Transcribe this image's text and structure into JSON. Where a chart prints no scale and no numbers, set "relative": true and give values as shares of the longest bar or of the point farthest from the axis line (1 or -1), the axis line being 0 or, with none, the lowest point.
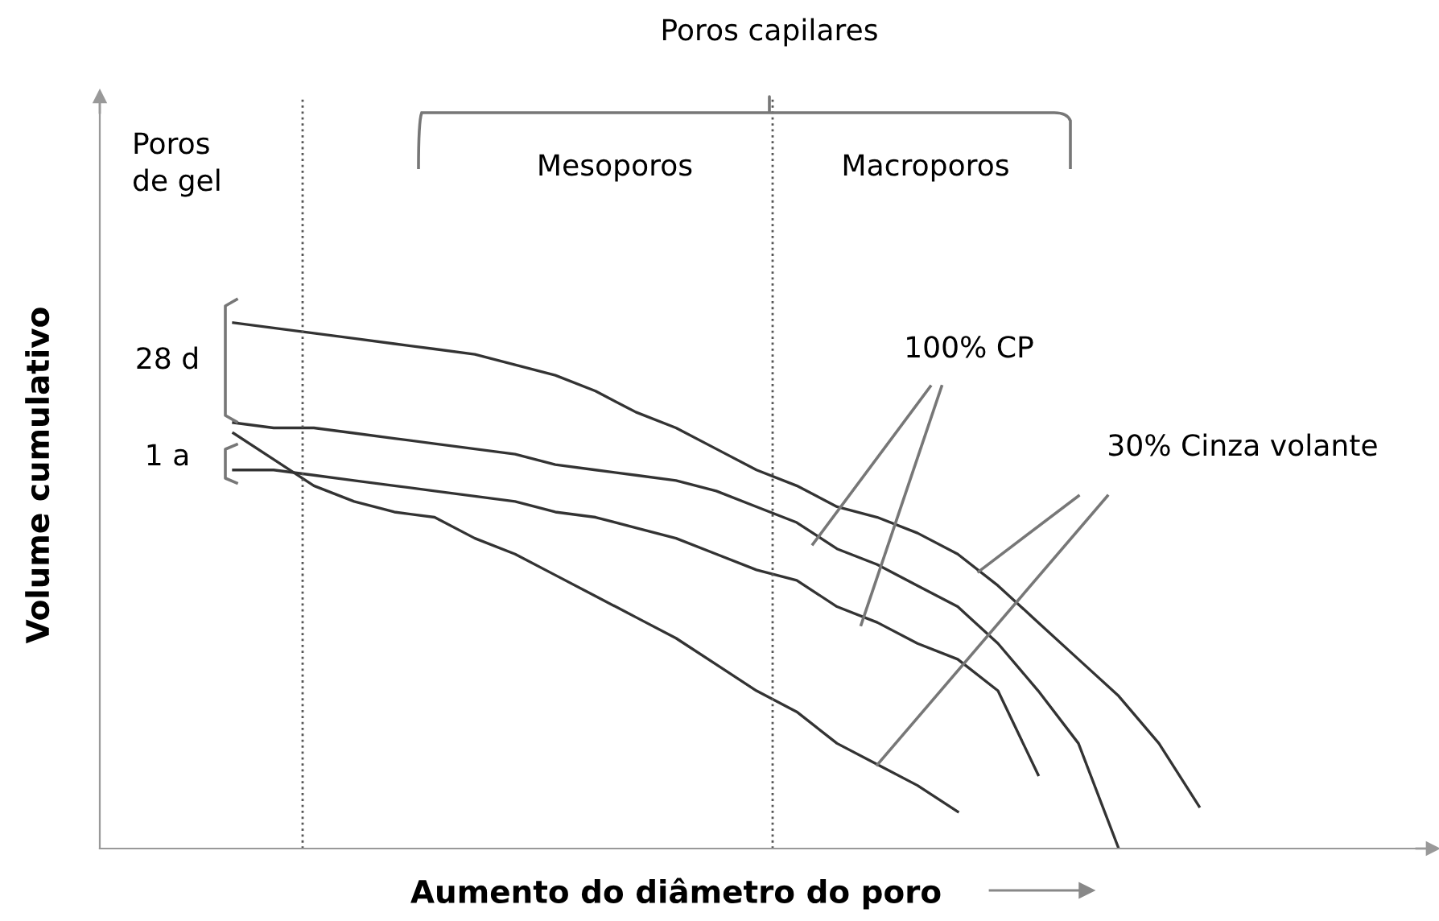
{
  "chart_data": {
    "type": "line",
    "relative": true,
    "xlabel": "Aumento do diâmetro do poro",
    "ylabel": "Volume cumulativo",
    "categories": [
      null,
      null,
      null,
      null,
      null,
      null,
      null,
      null,
      null,
      null,
      null,
      null,
      null,
      null,
      null,
      null,
      null,
      null,
      null,
      null,
      null,
      null,
      null,
      null,
      null,
      null,
      null,
      null,
      null,
      null,
      null,
      null,
      null
    ],
    "series": [
      {
        "color": "#333333",
        "values": [
          null,
          null,
          null,
          1.0,
          0.99,
          0.98,
          0.97,
          0.96,
          0.95,
          0.94,
          0.92,
          0.9,
          0.87,
          0.83,
          0.8,
          0.76,
          0.72,
          0.69,
          0.65,
          0.63,
          0.6,
          0.56,
          0.5,
          0.43,
          0.36,
          0.29,
          0.2,
          0.08,
          null,
          null,
          null,
          null,
          null
        ]
      },
      {
        "color": "#333333",
        "values": [
          null,
          null,
          null,
          0.81,
          0.8,
          0.8,
          0.79,
          0.78,
          0.77,
          0.76,
          0.75,
          0.73,
          0.72,
          0.71,
          0.7,
          0.68,
          0.65,
          0.62,
          0.57,
          0.54,
          0.5,
          0.46,
          0.39,
          0.3,
          0.2,
          0.0,
          null,
          null,
          null,
          null,
          null,
          null,
          null
        ]
      },
      {
        "color": "#333333",
        "values": [
          null,
          null,
          null,
          0.72,
          0.72,
          0.71,
          0.7,
          0.69,
          0.68,
          0.67,
          0.66,
          0.64,
          0.63,
          0.61,
          0.59,
          0.56,
          0.53,
          0.51,
          0.46,
          0.43,
          0.39,
          0.36,
          0.3,
          0.14,
          null,
          null,
          null,
          null,
          null,
          null,
          null,
          null,
          null
        ]
      },
      {
        "color": "#333333",
        "values": [
          null,
          null,
          null,
          0.79,
          0.74,
          0.69,
          0.66,
          0.64,
          0.63,
          0.59,
          0.56,
          0.52,
          0.48,
          0.44,
          0.4,
          0.35,
          0.3,
          0.26,
          0.2,
          0.16,
          0.12,
          0.07,
          null,
          null,
          null,
          null,
          null,
          null,
          null,
          null,
          null,
          null,
          null
        ]
      }
    ],
    "annotations": [
      "Poros capilares",
      "Poros de gel",
      "Mesoporos",
      "Macroporos",
      "28 d",
      "1 a",
      "100% CP",
      "30% Cinza volante"
    ],
    "legend": false,
    "marker": "none",
    "line_style": "solid"
  }
}
